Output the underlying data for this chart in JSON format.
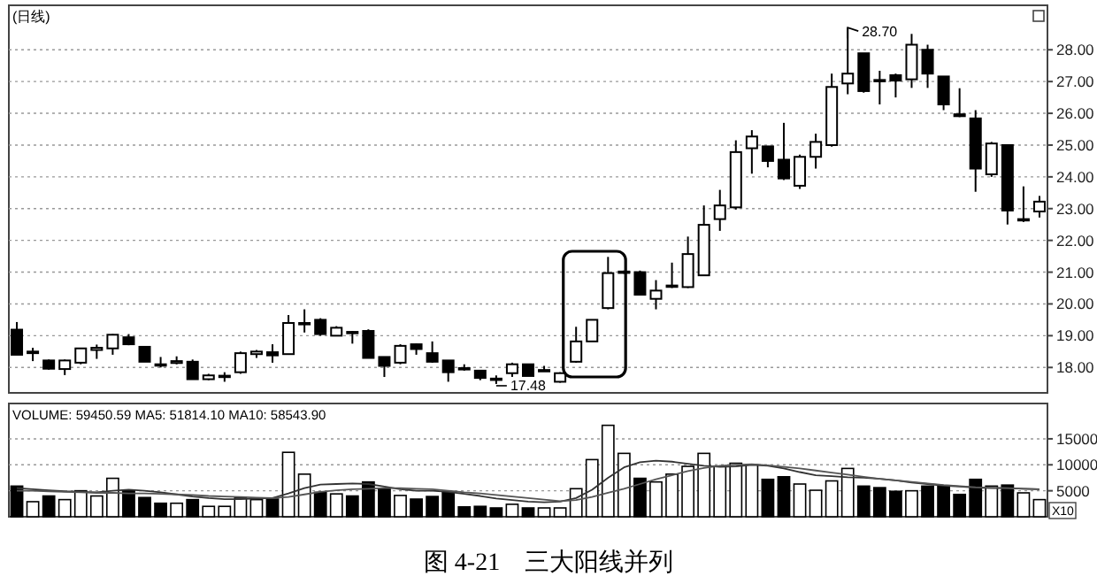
{
  "chart_data": [
    {
      "type": "candlestick",
      "title": "(日线)",
      "categories": [
        null,
        null,
        null,
        null,
        null,
        null,
        null,
        null,
        null,
        null,
        null,
        null,
        null,
        null,
        null,
        null,
        null,
        null,
        null,
        null,
        null,
        null,
        null,
        null,
        null,
        null,
        null,
        null,
        null,
        null,
        null,
        null,
        null,
        null,
        null,
        null,
        null,
        null,
        null,
        null,
        null,
        null,
        null,
        null,
        null,
        null,
        null,
        null,
        null,
        null,
        null,
        null,
        null,
        null,
        null,
        null,
        null,
        null,
        null,
        null,
        null,
        null,
        null,
        null,
        null
      ],
      "ohlc": [
        [
          19.19,
          19.43,
          18.4,
          18.4
        ],
        [
          18.45,
          18.62,
          18.2,
          18.5
        ],
        [
          18.22,
          18.25,
          17.93,
          17.96
        ],
        [
          17.95,
          18.25,
          17.76,
          18.22
        ],
        [
          18.15,
          18.62,
          18.1,
          18.6
        ],
        [
          18.55,
          18.72,
          18.27,
          18.62
        ],
        [
          18.6,
          19.05,
          18.4,
          19.03
        ],
        [
          18.95,
          19.05,
          18.7,
          18.73
        ],
        [
          18.65,
          18.65,
          18.18,
          18.18
        ],
        [
          18.1,
          18.33,
          18.0,
          18.08
        ],
        [
          18.14,
          18.35,
          18.1,
          18.2
        ],
        [
          18.18,
          18.25,
          17.63,
          17.63
        ],
        [
          17.63,
          17.8,
          17.6,
          17.75
        ],
        [
          17.72,
          17.85,
          17.55,
          17.74
        ],
        [
          17.85,
          18.5,
          17.8,
          18.45
        ],
        [
          18.42,
          18.55,
          18.3,
          18.5
        ],
        [
          18.48,
          18.73,
          18.15,
          18.38
        ],
        [
          18.42,
          19.65,
          18.4,
          19.4
        ],
        [
          19.38,
          19.83,
          19.1,
          19.4
        ],
        [
          19.5,
          19.55,
          19.0,
          19.05
        ],
        [
          19.0,
          19.3,
          19.0,
          19.25
        ],
        [
          19.12,
          19.15,
          18.75,
          19.1
        ],
        [
          19.15,
          19.2,
          18.3,
          18.3
        ],
        [
          18.33,
          18.33,
          17.7,
          18.05
        ],
        [
          18.15,
          18.73,
          18.1,
          18.68
        ],
        [
          18.73,
          18.75,
          18.4,
          18.58
        ],
        [
          18.45,
          18.82,
          18.15,
          18.18
        ],
        [
          18.22,
          18.22,
          17.55,
          17.85
        ],
        [
          17.98,
          18.1,
          17.9,
          17.96
        ],
        [
          17.9,
          17.9,
          17.6,
          17.67
        ],
        [
          17.65,
          17.75,
          17.48,
          17.63
        ],
        [
          17.82,
          18.15,
          17.7,
          18.1
        ],
        [
          18.1,
          18.1,
          17.73,
          17.73
        ],
        [
          17.9,
          18.05,
          17.9,
          17.92
        ],
        [
          17.55,
          17.85,
          17.52,
          17.82
        ],
        [
          18.18,
          19.28,
          18.15,
          18.82
        ],
        [
          18.82,
          19.5,
          18.82,
          19.5
        ],
        [
          19.87,
          21.48,
          19.83,
          20.97
        ],
        [
          21.0,
          21.05,
          20.95,
          21.02
        ],
        [
          21.0,
          21.05,
          20.29,
          20.29
        ],
        [
          20.16,
          20.75,
          19.83,
          20.42
        ],
        [
          20.56,
          21.3,
          20.5,
          20.58
        ],
        [
          20.53,
          22.12,
          20.5,
          21.57
        ],
        [
          20.9,
          23.1,
          20.9,
          22.49
        ],
        [
          22.67,
          23.59,
          22.3,
          23.1
        ],
        [
          23.04,
          25.15,
          22.97,
          24.78
        ],
        [
          24.9,
          25.47,
          24.1,
          25.27
        ],
        [
          24.96,
          24.96,
          24.3,
          24.5
        ],
        [
          24.54,
          25.7,
          23.9,
          23.95
        ],
        [
          23.72,
          24.7,
          23.62,
          24.63
        ],
        [
          24.63,
          25.36,
          24.26,
          25.1
        ],
        [
          25.0,
          27.25,
          24.95,
          26.83
        ],
        [
          26.94,
          28.7,
          26.6,
          27.25
        ],
        [
          27.89,
          27.89,
          26.65,
          26.7
        ],
        [
          27.05,
          27.34,
          26.28,
          27.03
        ],
        [
          27.2,
          27.25,
          26.5,
          27.03
        ],
        [
          27.07,
          28.5,
          26.8,
          28.16
        ],
        [
          28.0,
          28.16,
          26.8,
          27.25
        ],
        [
          27.16,
          27.16,
          26.1,
          26.28
        ],
        [
          25.97,
          26.79,
          25.88,
          25.91
        ],
        [
          25.84,
          26.1,
          23.53,
          24.26
        ],
        [
          24.08,
          25.1,
          24.0,
          25.05
        ],
        [
          25.0,
          25.0,
          22.5,
          22.94
        ],
        [
          22.65,
          23.7,
          22.58,
          22.67
        ],
        [
          22.91,
          23.4,
          22.72,
          23.22
        ]
      ],
      "ylim": [
        17.2,
        29.4
      ],
      "yticks": [
        {
          "value": 18,
          "label": "18.00"
        },
        {
          "value": 19,
          "label": "19.00"
        },
        {
          "value": 20,
          "label": "20.00"
        },
        {
          "value": 21,
          "label": "21.00"
        },
        {
          "value": 22,
          "label": "22.00"
        },
        {
          "value": 23,
          "label": "23.00"
        },
        {
          "value": 24,
          "label": "24.00"
        },
        {
          "value": 25,
          "label": "25.00"
        },
        {
          "value": 26,
          "label": "26.00"
        },
        {
          "value": 27,
          "label": "27.00"
        },
        {
          "value": 28,
          "label": "28.00"
        }
      ],
      "grid": "y",
      "annotations": [
        "28.70",
        "17.48"
      ]
    },
    {
      "type": "bar",
      "categories": [
        null,
        null,
        null,
        null,
        null,
        null,
        null,
        null,
        null,
        null,
        null,
        null,
        null,
        null,
        null,
        null,
        null,
        null,
        null,
        null,
        null,
        null,
        null,
        null,
        null,
        null,
        null,
        null,
        null,
        null,
        null,
        null,
        null,
        null,
        null,
        null,
        null,
        null,
        null,
        null,
        null,
        null,
        null,
        null,
        null,
        null,
        null,
        null,
        null,
        null,
        null,
        null,
        null,
        null,
        null,
        null,
        null,
        null,
        null,
        null,
        null,
        null,
        null,
        null,
        null
      ],
      "series": [
        {
          "type": "bar",
          "values": [
            5900,
            2900,
            4000,
            3300,
            5000,
            4000,
            7400,
            5000,
            3700,
            2600,
            2600,
            3300,
            2000,
            2000,
            3600,
            3300,
            3400,
            12400,
            8200,
            4700,
            4400,
            4000,
            6700,
            5400,
            4100,
            3400,
            3900,
            4700,
            1900,
            2000,
            1700,
            2400,
            1700,
            1700,
            1700,
            5400,
            11000,
            17600,
            12200,
            7400,
            6700,
            8200,
            9700,
            12200,
            9700,
            10300,
            10000,
            7200,
            7700,
            6300,
            5100,
            6900,
            9300,
            5900,
            5600,
            4900,
            5000,
            5900,
            6000,
            4300,
            7200,
            5900,
            6100,
            4600,
            3300
          ],
          "colors": [
            "#000000",
            "#ffffff",
            "#000000",
            "#ffffff",
            "#ffffff",
            "#ffffff",
            "#ffffff",
            "#000000",
            "#000000",
            "#000000",
            "#ffffff",
            "#000000",
            "#ffffff",
            "#ffffff",
            "#ffffff",
            "#ffffff",
            "#000000",
            "#ffffff",
            "#ffffff",
            "#000000",
            "#ffffff",
            "#000000",
            "#000000",
            "#000000",
            "#ffffff",
            "#000000",
            "#000000",
            "#000000",
            "#000000",
            "#000000",
            "#000000",
            "#ffffff",
            "#000000",
            "#ffffff",
            "#ffffff",
            "#ffffff",
            "#ffffff",
            "#ffffff",
            "#ffffff",
            "#000000",
            "#ffffff",
            "#ffffff",
            "#ffffff",
            "#ffffff",
            "#ffffff",
            "#ffffff",
            "#ffffff",
            "#000000",
            "#000000",
            "#ffffff",
            "#ffffff",
            "#ffffff",
            "#ffffff",
            "#000000",
            "#000000",
            "#000000",
            "#ffffff",
            "#000000",
            "#000000",
            "#000000",
            "#000000",
            "#ffffff",
            "#000000",
            "#ffffff",
            "#ffffff"
          ]
        },
        {
          "type": "line",
          "color": "#333333",
          "values": [
            5500,
            5300,
            5100,
            4900,
            4800,
            4700,
            5000,
            5200,
            5000,
            4700,
            4300,
            3900,
            3600,
            3400,
            3400,
            3500,
            3600,
            4500,
            5500,
            6200,
            6300,
            6400,
            6300,
            5800,
            5300,
            5000,
            5000,
            4800,
            4400,
            4000,
            3500,
            3200,
            2900,
            2800,
            2900,
            3600,
            5200,
            7500,
            9500,
            10500,
            10800,
            10600,
            10200,
            9800,
            9600,
            9700,
            10000,
            9800,
            9300,
            8600,
            8000,
            7800,
            7600,
            7500,
            7300,
            7000,
            6600,
            6300,
            6000,
            5800,
            5600,
            5500,
            5500,
            5400,
            5300
          ]
        },
        {
          "type": "line",
          "color": "#555555",
          "values": [
            5000,
            5000,
            4900,
            4800,
            4700,
            4600,
            4600,
            4500,
            4500,
            4400,
            4300,
            4200,
            4000,
            3900,
            3800,
            3700,
            3600,
            3800,
            4300,
            4800,
            5100,
            5300,
            5400,
            5500,
            5500,
            5400,
            5300,
            5000,
            4700,
            4500,
            4200,
            3900,
            3600,
            3300,
            3000,
            3200,
            3800,
            4600,
            5400,
            6300,
            7200,
            8000,
            8800,
            9400,
            9800,
            10000,
            10100,
            9900,
            9600,
            9300,
            8900,
            8500,
            8100,
            7700,
            7300,
            7000,
            6700,
            6400,
            6100,
            5900,
            5700,
            5600,
            5500,
            5400,
            5300
          ]
        }
      ],
      "ylim": [
        0,
        21800
      ],
      "yticks": [
        5000,
        10000,
        15000
      ],
      "grid": "y",
      "annotations": [
        "VOLUME: 59450.59 MA5: 51814.10 MA10: 58543.90",
        "X10",
        "图 4-21　三大阳线并列"
      ]
    }
  ]
}
